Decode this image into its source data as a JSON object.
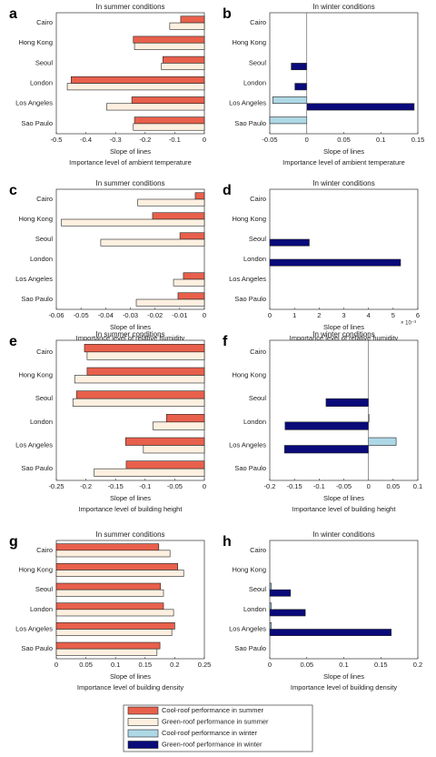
{
  "chart_data": [
    {
      "type": "barh",
      "label": "a",
      "title": "In summer conditions",
      "xlabel": "Slope of lines",
      "subtitle": "Importance level of ambient temperature",
      "categories": [
        "Cairo",
        "Hong Kong",
        "Seoul",
        "London",
        "Los Angeles",
        "Sao Paulo"
      ],
      "series": [
        {
          "name": "Cool-roof performance in summer",
          "color": "#e8604c",
          "values": [
            -0.08,
            -0.24,
            -0.14,
            -0.45,
            -0.245,
            -0.236
          ]
        },
        {
          "name": "Green-roof performance in summer",
          "color": "#fdf0e0",
          "values": [
            -0.117,
            -0.236,
            -0.145,
            -0.463,
            -0.33,
            -0.24
          ]
        }
      ],
      "xlim": [
        -0.5,
        0
      ],
      "xticks": [
        -0.5,
        -0.4,
        -0.3,
        -0.2,
        -0.1,
        0
      ]
    },
    {
      "type": "barh",
      "label": "b",
      "title": "In winter conditions",
      "xlabel": "Slope of lines",
      "subtitle": "Importance level of ambient temperature",
      "categories": [
        "Cairo",
        "Hong Kong",
        "Seoul",
        "London",
        "Los Angeles",
        "Sao Paulo"
      ],
      "series": [
        {
          "name": "Cool-roof performance in winter",
          "color": "#aed8e6",
          "values": [
            0,
            0,
            0,
            0,
            -0.046,
            -0.05
          ]
        },
        {
          "name": "Green-roof performance in winter",
          "color": "#0a0a7a",
          "values": [
            0,
            0,
            -0.021,
            -0.016,
            0.145,
            0
          ]
        }
      ],
      "xlim": [
        -0.05,
        0.15
      ],
      "xticks": [
        -0.05,
        0,
        0.05,
        0.1,
        0.15
      ]
    },
    {
      "type": "barh",
      "label": "c",
      "title": "In summer conditions",
      "xlabel": "Slope of lines",
      "subtitle": "Importance level of relative humidity",
      "categories": [
        "Cairo",
        "Hong Kong",
        "Seoul",
        "London",
        "Los Angeles",
        "Sao Paulo"
      ],
      "series": [
        {
          "color": "#e8604c",
          "values": [
            -0.0037,
            -0.021,
            -0.0099,
            0,
            -0.0085,
            -0.0107
          ]
        },
        {
          "color": "#fdf0e0",
          "values": [
            -0.027,
            -0.058,
            -0.042,
            0,
            -0.0125,
            -0.0276
          ]
        }
      ],
      "xlim": [
        -0.06,
        0
      ],
      "xticks": [
        -0.06,
        -0.05,
        -0.04,
        -0.03,
        -0.02,
        -0.01,
        0
      ]
    },
    {
      "type": "barh",
      "label": "d",
      "title": "In winter conditions",
      "xlabel": "Slope of lines",
      "subtitle": "Importance level of relative humidity",
      "x_exponent": "× 10⁻³",
      "categories": [
        "Cairo",
        "Hong Kong",
        "Seoul",
        "London",
        "Los Angeles",
        "Sao Paulo"
      ],
      "series": [
        {
          "color": "#aed8e6",
          "values": [
            0,
            0,
            0,
            0,
            0,
            0
          ]
        },
        {
          "color": "#0a0a7a",
          "values": [
            0,
            0,
            0.0016,
            0.0053,
            0,
            0
          ]
        }
      ],
      "xlim": [
        0,
        0.006
      ],
      "xticks": [
        {
          "value": 0,
          "label": "0"
        },
        {
          "value": 0.001,
          "label": "1"
        },
        {
          "value": 0.002,
          "label": "2"
        },
        {
          "value": 0.003,
          "label": "3"
        },
        {
          "value": 0.004,
          "label": "4"
        },
        {
          "value": 0.005,
          "label": "5"
        },
        {
          "value": 0.006,
          "label": "6"
        }
      ]
    },
    {
      "type": "barh",
      "label": "e",
      "title": "In summer conditions",
      "xlabel": "Slope of lines",
      "subtitle": "Importance level of building height",
      "categories": [
        "Cairo",
        "Hong Kong",
        "Seoul",
        "London",
        "Los Angeles",
        "Sao Paulo"
      ],
      "series": [
        {
          "color": "#e8604c",
          "values": [
            -0.2025,
            -0.198,
            -0.216,
            -0.064,
            -0.133,
            -0.132
          ]
        },
        {
          "color": "#fdf0e0",
          "values": [
            -0.198,
            -0.219,
            -0.222,
            -0.087,
            -0.103,
            -0.186
          ]
        }
      ],
      "xlim": [
        -0.25,
        0
      ],
      "xticks": [
        -0.25,
        -0.2,
        -0.15,
        -0.1,
        -0.05,
        0
      ]
    },
    {
      "type": "barh",
      "label": "f",
      "title": "In winter conditions",
      "xlabel": "Slope of lines",
      "subtitle": "Importance level of building height",
      "categories": [
        "Cairo",
        "Hong Kong",
        "Seoul",
        "London",
        "Los Angeles",
        "Sao Paulo"
      ],
      "series": [
        {
          "color": "#aed8e6",
          "values": [
            0,
            0,
            0,
            0.001,
            0.056,
            0
          ]
        },
        {
          "color": "#0a0a7a",
          "values": [
            0,
            0,
            -0.086,
            -0.169,
            -0.17,
            0
          ]
        }
      ],
      "xlim": [
        -0.2,
        0.1
      ],
      "xticks": [
        -0.2,
        -0.15,
        -0.1,
        -0.05,
        0,
        0.05,
        0.1
      ]
    },
    {
      "type": "barh",
      "label": "g",
      "title": "In summer conditions",
      "xlabel": "Slope of lines",
      "subtitle": "Importance level of building density",
      "categories": [
        "Cairo",
        "Hong Kong",
        "Seoul",
        "London",
        "Los Angeles",
        "Sao Paulo"
      ],
      "series": [
        {
          "color": "#e8604c",
          "values": [
            0.173,
            0.205,
            0.176,
            0.181,
            0.2,
            0.175
          ]
        },
        {
          "color": "#fdf0e0",
          "values": [
            0.192,
            0.215,
            0.181,
            0.198,
            0.195,
            0.17
          ]
        }
      ],
      "xlim": [
        0,
        0.25
      ],
      "xticks": [
        0,
        0.05,
        0.1,
        0.15,
        0.2,
        0.25
      ]
    },
    {
      "type": "barh",
      "label": "h",
      "title": "In winter conditions",
      "xlabel": "Slope of lines",
      "subtitle": "Importance level of building density",
      "categories": [
        "Cairo",
        "Hong Kong",
        "Seoul",
        "London",
        "Los Angeles",
        "Sao Paulo"
      ],
      "series": [
        {
          "color": "#aed8e6",
          "values": [
            0,
            0,
            0.002,
            0.002,
            0.002,
            0
          ]
        },
        {
          "color": "#0a0a7a",
          "values": [
            0,
            0,
            0.028,
            0.048,
            0.164,
            0
          ]
        }
      ],
      "xlim": [
        0,
        0.2
      ],
      "xticks": [
        0,
        0.05,
        0.1,
        0.15,
        0.2
      ]
    }
  ]
}
